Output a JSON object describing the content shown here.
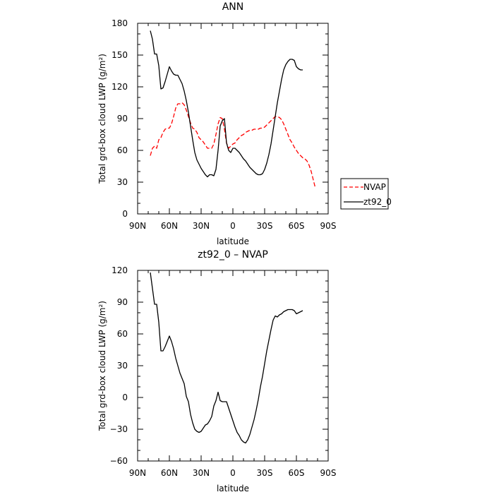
{
  "chart_data": [
    {
      "type": "line",
      "title": "ANN",
      "xlabel": "latitude",
      "ylabel": "Total grd-box cloud LWP (g/m²)",
      "xlim": [
        90,
        -90
      ],
      "ylim": [
        0,
        180
      ],
      "xticks": [
        90,
        60,
        30,
        0,
        -30,
        -60,
        -90
      ],
      "xtick_labels": [
        "90N",
        "60N",
        "30N",
        "0",
        "30S",
        "60S",
        "90S"
      ],
      "yticks": [
        0,
        30,
        60,
        90,
        120,
        150,
        180
      ],
      "ytick_labels": [
        "0",
        "30",
        "60",
        "90",
        "120",
        "150",
        "180"
      ],
      "grid": false,
      "legend_position": "right",
      "series": [
        {
          "name": "NVAP",
          "color": "#ff0000",
          "dash": "dashed",
          "x": [
            78,
            76,
            74,
            72,
            70,
            68,
            66,
            64,
            62,
            60,
            58,
            56,
            54,
            52,
            50,
            48,
            46,
            44,
            42,
            40,
            38,
            36,
            34,
            32,
            30,
            28,
            26,
            24,
            22,
            20,
            18,
            16,
            14,
            12,
            10,
            8,
            6,
            4,
            2,
            0,
            -2,
            -4,
            -6,
            -8,
            -10,
            -12,
            -14,
            -16,
            -18,
            -20,
            -22,
            -24,
            -26,
            -28,
            -30,
            -32,
            -34,
            -36,
            -38,
            -40,
            -42,
            -44,
            -46,
            -48,
            -50,
            -52,
            -54,
            -56,
            -58,
            -60,
            -62,
            -64,
            -66,
            -68,
            -70,
            -72,
            -74,
            -76,
            -78
          ],
          "y": [
            55,
            62,
            64,
            62,
            70,
            72,
            77,
            80,
            81,
            81,
            85,
            92,
            100,
            104,
            104,
            105,
            103,
            98,
            92,
            86,
            81,
            80,
            77,
            72,
            70,
            68,
            65,
            62,
            62,
            62,
            66,
            75,
            85,
            91,
            90,
            80,
            67,
            62,
            64,
            66,
            67,
            70,
            72,
            74,
            75,
            77,
            78,
            79,
            79,
            80,
            80,
            80,
            81,
            81,
            82,
            84,
            86,
            88,
            90,
            92,
            92,
            91,
            89,
            85,
            80,
            75,
            70,
            67,
            63,
            60,
            57,
            55,
            53,
            52,
            50,
            46,
            40,
            32,
            24
          ]
        },
        {
          "name": "zt92_0",
          "color": "#000000",
          "dash": "solid",
          "x": [
            78,
            76,
            74,
            72,
            70,
            68,
            66,
            64,
            62,
            60,
            58,
            56,
            54,
            52,
            50,
            48,
            46,
            44,
            42,
            40,
            38,
            36,
            34,
            32,
            30,
            28,
            26,
            24,
            22,
            20,
            18,
            16,
            14,
            12,
            10,
            8,
            6,
            4,
            2,
            0,
            -2,
            -4,
            -6,
            -8,
            -10,
            -12,
            -14,
            -16,
            -18,
            -20,
            -22,
            -24,
            -26,
            -28,
            -30,
            -32,
            -34,
            -36,
            -38,
            -40,
            -42,
            -44,
            -46,
            -48,
            -50,
            -52,
            -54,
            -56,
            -58,
            -60,
            -62,
            -64,
            -66
          ],
          "y": [
            173,
            165,
            151,
            151,
            140,
            118,
            119,
            125,
            132,
            139,
            135,
            132,
            131,
            131,
            127,
            123,
            116,
            107,
            96,
            83,
            70,
            58,
            51,
            47,
            43,
            40,
            37,
            35,
            37,
            37,
            36,
            42,
            60,
            83,
            88,
            90,
            67,
            60,
            58,
            62,
            62,
            60,
            58,
            55,
            52,
            50,
            47,
            44,
            42,
            40,
            38,
            37,
            37,
            38,
            42,
            48,
            56,
            66,
            79,
            92,
            105,
            116,
            127,
            136,
            141,
            144,
            146,
            146,
            145,
            139,
            137,
            136,
            136
          ]
        }
      ]
    },
    {
      "type": "line",
      "title": "zt92_0 – NVAP",
      "xlabel": "latitude",
      "ylabel": "Total grd-box cloud LWP (g/m²)",
      "xlim": [
        90,
        -90
      ],
      "ylim": [
        -60,
        120
      ],
      "xticks": [
        90,
        60,
        30,
        0,
        -30,
        -60,
        -90
      ],
      "xtick_labels": [
        "90N",
        "60N",
        "30N",
        "0",
        "30S",
        "60S",
        "90S"
      ],
      "yticks": [
        -60,
        -30,
        0,
        30,
        60,
        90,
        120
      ],
      "ytick_labels": [
        "−60",
        "−30",
        "0",
        "30",
        "60",
        "90",
        "120"
      ],
      "grid": false,
      "series": [
        {
          "color": "#000000",
          "dash": "solid",
          "x": [
            78,
            76,
            74,
            72,
            70,
            68,
            66,
            64,
            62,
            60,
            58,
            56,
            54,
            52,
            50,
            48,
            46,
            44,
            42,
            40,
            38,
            36,
            34,
            32,
            30,
            28,
            26,
            24,
            22,
            20,
            18,
            16,
            14,
            12,
            10,
            8,
            6,
            4,
            2,
            0,
            -2,
            -4,
            -6,
            -8,
            -10,
            -12,
            -14,
            -16,
            -18,
            -20,
            -22,
            -24,
            -26,
            -28,
            -30,
            -32,
            -34,
            -36,
            -38,
            -40,
            -42,
            -44,
            -46,
            -48,
            -50,
            -52,
            -54,
            -56,
            -58,
            -60,
            -62,
            -64,
            -66
          ],
          "y": [
            118,
            103,
            88,
            88,
            71,
            44,
            44,
            48,
            53,
            58,
            53,
            46,
            37,
            30,
            23,
            18,
            13,
            1,
            -4,
            -16,
            -24,
            -30,
            -32,
            -33,
            -32,
            -29,
            -26,
            -25,
            -22,
            -18,
            -8,
            -3,
            5,
            -3,
            -4,
            -4,
            -4,
            -10,
            -16,
            -22,
            -28,
            -33,
            -36,
            -40,
            -42,
            -43,
            -40,
            -35,
            -28,
            -21,
            -12,
            -2,
            10,
            20,
            32,
            44,
            54,
            64,
            73,
            77,
            76,
            78,
            79,
            81,
            82,
            83,
            83,
            83,
            82,
            79,
            80,
            81,
            82
          ]
        }
      ]
    }
  ]
}
